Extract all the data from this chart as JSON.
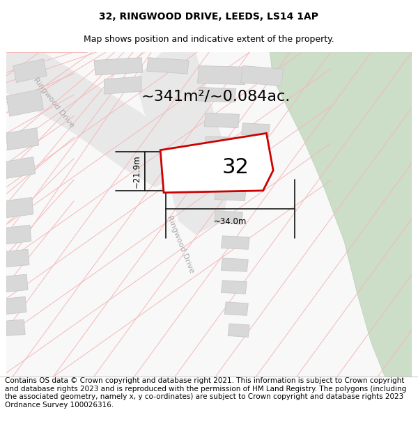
{
  "title_line1": "32, RINGWOOD DRIVE, LEEDS, LS14 1AP",
  "title_line2": "Map shows position and indicative extent of the property.",
  "area_text": "~341m²/~0.084ac.",
  "property_number": "32",
  "dim_width": "~34.0m",
  "dim_height": "~21.9m",
  "road_label_upper": "Ringwood Drive",
  "road_label_lower": "Ringwood Drive",
  "footer_text": "Contains OS data © Crown copyright and database right 2021. This information is subject to Crown copyright and database rights 2023 and is reproduced with the permission of HM Land Registry. The polygons (including the associated geometry, namely x, y co-ordinates) are subject to Crown copyright and database rights 2023 Ordnance Survey 100026316.",
  "map_bg": "#f8f8f8",
  "road_fill": "#e8e8e8",
  "road_line_color": "#f5b8b8",
  "building_fill": "#d8d8d8",
  "building_edge": "#c8c8c8",
  "green_fill": "#ccddc8",
  "green_edge": "#bdd0ba",
  "highlight_color": "#cc0000",
  "dim_color": "#111111",
  "label_color": "#aaaaaa",
  "title_fontsize": 10,
  "subtitle_fontsize": 9,
  "area_fontsize": 16,
  "number_fontsize": 22,
  "dim_fontsize": 8.5,
  "road_fontsize": 8,
  "footer_fontsize": 7.5
}
